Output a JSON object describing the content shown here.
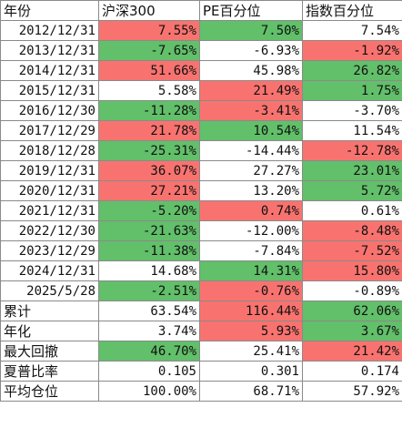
{
  "colors": {
    "red": "#f8736f",
    "green": "#62bf6a",
    "white": "#ffffff"
  },
  "headers": [
    "年份",
    "沪深300",
    "PE百分位",
    "指数百分位"
  ],
  "rows": [
    {
      "label": "2012/12/31",
      "cells": [
        {
          "value": "7.55%",
          "color": "red"
        },
        {
          "value": "7.50%",
          "color": "green"
        },
        {
          "value": "7.54%",
          "color": "white"
        }
      ]
    },
    {
      "label": "2013/12/31",
      "cells": [
        {
          "value": "-7.65%",
          "color": "green"
        },
        {
          "value": "-6.93%",
          "color": "white"
        },
        {
          "value": "-1.92%",
          "color": "red"
        }
      ]
    },
    {
      "label": "2014/12/31",
      "cells": [
        {
          "value": "51.66%",
          "color": "red"
        },
        {
          "value": "45.98%",
          "color": "white"
        },
        {
          "value": "26.82%",
          "color": "green"
        }
      ]
    },
    {
      "label": "2015/12/31",
      "cells": [
        {
          "value": "5.58%",
          "color": "white"
        },
        {
          "value": "21.49%",
          "color": "red"
        },
        {
          "value": "1.75%",
          "color": "green"
        }
      ]
    },
    {
      "label": "2016/12/30",
      "cells": [
        {
          "value": "-11.28%",
          "color": "green"
        },
        {
          "value": "-3.41%",
          "color": "red"
        },
        {
          "value": "-3.70%",
          "color": "white"
        }
      ]
    },
    {
      "label": "2017/12/29",
      "cells": [
        {
          "value": "21.78%",
          "color": "red"
        },
        {
          "value": "10.54%",
          "color": "green"
        },
        {
          "value": "11.54%",
          "color": "white"
        }
      ]
    },
    {
      "label": "2018/12/28",
      "cells": [
        {
          "value": "-25.31%",
          "color": "green"
        },
        {
          "value": "-14.44%",
          "color": "white"
        },
        {
          "value": "-12.78%",
          "color": "red"
        }
      ]
    },
    {
      "label": "2019/12/31",
      "cells": [
        {
          "value": "36.07%",
          "color": "red"
        },
        {
          "value": "27.27%",
          "color": "white"
        },
        {
          "value": "23.01%",
          "color": "green"
        }
      ]
    },
    {
      "label": "2020/12/31",
      "cells": [
        {
          "value": "27.21%",
          "color": "red"
        },
        {
          "value": "13.20%",
          "color": "white"
        },
        {
          "value": "5.72%",
          "color": "green"
        }
      ]
    },
    {
      "label": "2021/12/31",
      "cells": [
        {
          "value": "-5.20%",
          "color": "green"
        },
        {
          "value": "0.74%",
          "color": "red"
        },
        {
          "value": "0.61%",
          "color": "white"
        }
      ]
    },
    {
      "label": "2022/12/30",
      "cells": [
        {
          "value": "-21.63%",
          "color": "green"
        },
        {
          "value": "-12.00%",
          "color": "white"
        },
        {
          "value": "-8.48%",
          "color": "red"
        }
      ]
    },
    {
      "label": "2023/12/29",
      "cells": [
        {
          "value": "-11.38%",
          "color": "green"
        },
        {
          "value": "-7.84%",
          "color": "white"
        },
        {
          "value": "-7.52%",
          "color": "red"
        }
      ]
    },
    {
      "label": "2024/12/31",
      "cells": [
        {
          "value": "14.68%",
          "color": "white"
        },
        {
          "value": "14.31%",
          "color": "green"
        },
        {
          "value": "15.80%",
          "color": "red"
        }
      ]
    },
    {
      "label": "2025/5/28",
      "cells": [
        {
          "value": "-2.51%",
          "color": "green"
        },
        {
          "value": "-0.76%",
          "color": "red"
        },
        {
          "value": "-0.89%",
          "color": "white"
        }
      ]
    }
  ],
  "summary": [
    {
      "label": "累计",
      "cells": [
        {
          "value": "63.54%",
          "color": "white"
        },
        {
          "value": "116.44%",
          "color": "red"
        },
        {
          "value": "62.06%",
          "color": "green"
        }
      ]
    },
    {
      "label": "年化",
      "cells": [
        {
          "value": "3.74%",
          "color": "white"
        },
        {
          "value": "5.93%",
          "color": "red"
        },
        {
          "value": "3.67%",
          "color": "green"
        }
      ]
    },
    {
      "label": "最大回撤",
      "cells": [
        {
          "value": "46.70%",
          "color": "green"
        },
        {
          "value": "25.41%",
          "color": "white"
        },
        {
          "value": "21.42%",
          "color": "red"
        }
      ]
    },
    {
      "label": "夏普比率",
      "cells": [
        {
          "value": "0.105",
          "color": "white"
        },
        {
          "value": "0.301",
          "color": "white"
        },
        {
          "value": "0.174",
          "color": "white"
        }
      ]
    },
    {
      "label": "平均仓位",
      "cells": [
        {
          "value": "100.00%",
          "color": "white"
        },
        {
          "value": "68.71%",
          "color": "white"
        },
        {
          "value": "57.92%",
          "color": "white"
        }
      ]
    }
  ]
}
